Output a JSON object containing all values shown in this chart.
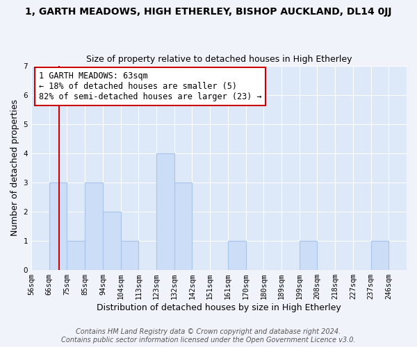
{
  "title": "1, GARTH MEADOWS, HIGH ETHERLEY, BISHOP AUCKLAND, DL14 0JJ",
  "subtitle": "Size of property relative to detached houses in High Etherley",
  "xlabel": "Distribution of detached houses by size in High Etherley",
  "ylabel": "Number of detached properties",
  "bin_labels": [
    "56sqm",
    "66sqm",
    "75sqm",
    "85sqm",
    "94sqm",
    "104sqm",
    "113sqm",
    "123sqm",
    "132sqm",
    "142sqm",
    "151sqm",
    "161sqm",
    "170sqm",
    "180sqm",
    "189sqm",
    "199sqm",
    "208sqm",
    "218sqm",
    "227sqm",
    "237sqm",
    "246sqm"
  ],
  "bar_heights": [
    0,
    3,
    1,
    3,
    2,
    1,
    0,
    4,
    3,
    0,
    0,
    1,
    0,
    0,
    0,
    1,
    0,
    0,
    0,
    1,
    0
  ],
  "bar_color": "#ccddf7",
  "bar_edge_color": "#a8c4e8",
  "property_line_bin_index": 1.07,
  "annotation_line1": "1 GARTH MEADOWS: 63sqm",
  "annotation_line2": "← 18% of detached houses are smaller (5)",
  "annotation_line3": "82% of semi-detached houses are larger (23) →",
  "annotation_box_color": "#ffffff",
  "annotation_box_edge_color": "#cc0000",
  "line_color": "#cc0000",
  "ylim": [
    0,
    7
  ],
  "yticks": [
    0,
    1,
    2,
    3,
    4,
    5,
    6,
    7
  ],
  "footer_text": "Contains HM Land Registry data © Crown copyright and database right 2024.\nContains public sector information licensed under the Open Government Licence v3.0.",
  "fig_facecolor": "#f0f4fa",
  "plot_bg_color": "#dde8f8",
  "title_fontsize": 10,
  "subtitle_fontsize": 9,
  "xlabel_fontsize": 9,
  "ylabel_fontsize": 9,
  "tick_fontsize": 7.5,
  "annotation_fontsize": 8.5,
  "footer_fontsize": 7
}
